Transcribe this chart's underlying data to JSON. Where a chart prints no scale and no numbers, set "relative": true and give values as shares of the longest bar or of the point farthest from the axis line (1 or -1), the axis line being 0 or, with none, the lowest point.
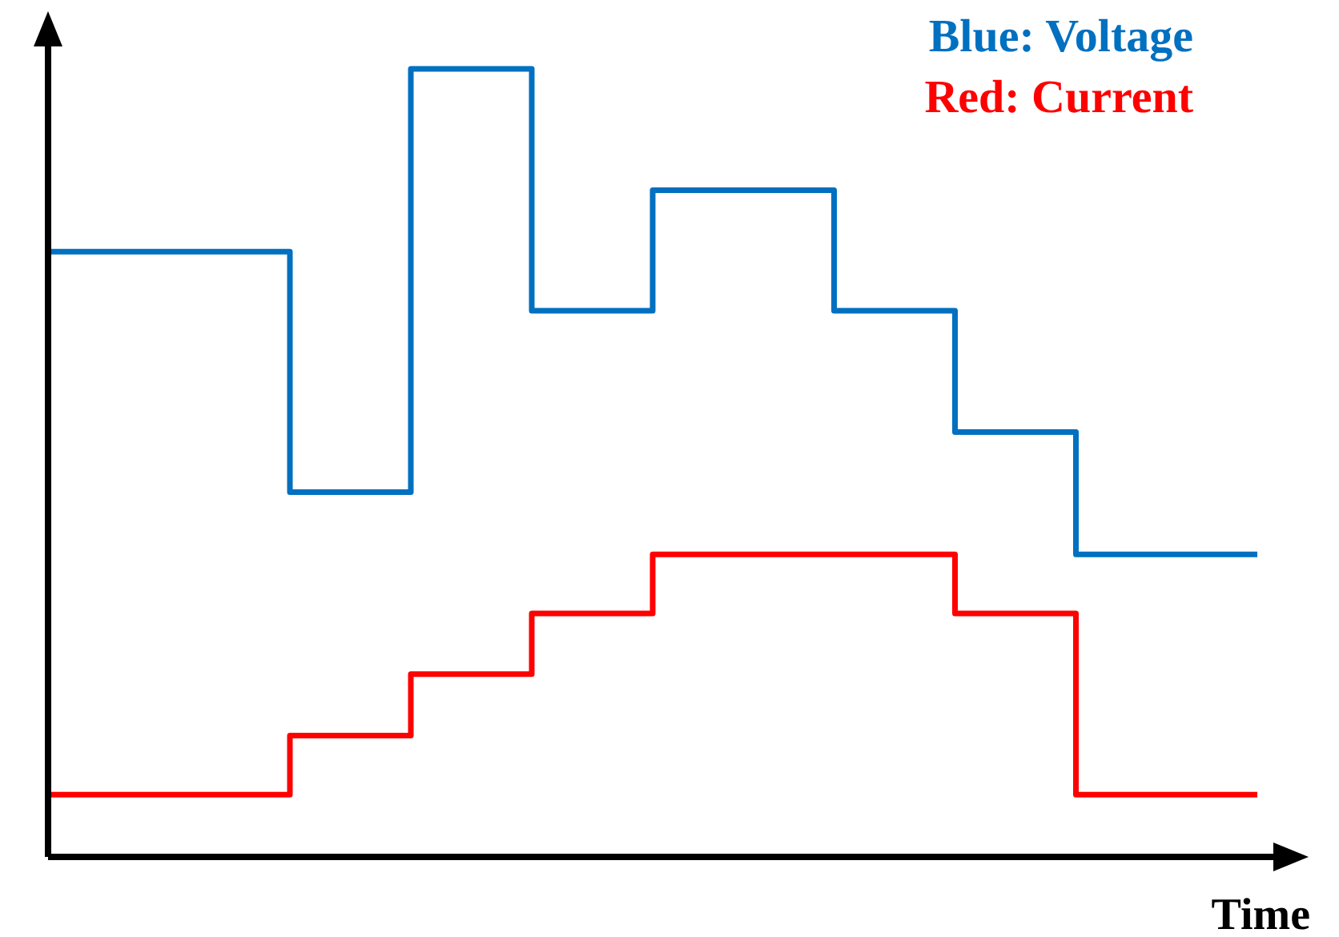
{
  "chart_data": {
    "type": "step",
    "relative": true,
    "xlabel": "Time",
    "legend": "top right",
    "line_style": "solid",
    "marker": "none",
    "grid": false,
    "categories": [
      null,
      null,
      null,
      null,
      null,
      null,
      null,
      null,
      null,
      null,
      null,
      null,
      null,
      null,
      null,
      null,
      null,
      null,
      null,
      null,
      null
    ],
    "series": [
      {
        "name": "Blue: Voltage",
        "color": "#0070c0",
        "values": [
          0.768,
          0.768,
          0.768,
          0.768,
          0.463,
          0.463,
          1,
          1,
          0.693,
          0.693,
          0.846,
          0.846,
          0.846,
          0.693,
          0.693,
          0.539,
          0.539,
          0.384,
          0.384,
          0.384,
          0.384
        ]
      },
      {
        "name": "Red: Current",
        "color": "#ff0000",
        "values": [
          0.079,
          0.079,
          0.079,
          0.079,
          0.154,
          0.154,
          0.232,
          0.232,
          0.309,
          0.309,
          0.384,
          0.384,
          0.384,
          0.384,
          0.384,
          0.309,
          0.309,
          0.079,
          0.079,
          0.079,
          0.079
        ]
      }
    ]
  }
}
